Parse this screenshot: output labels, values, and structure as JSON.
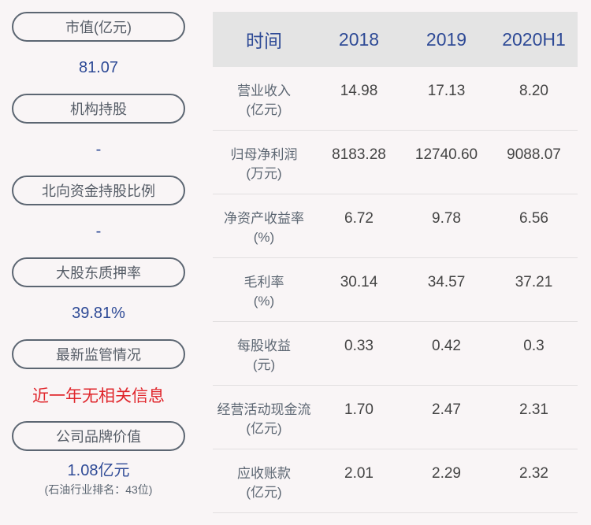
{
  "left_panel": {
    "items": [
      {
        "label": "市值(亿元)",
        "value": "81.07"
      },
      {
        "label": "机构持股",
        "value": "-"
      },
      {
        "label": "北向资金持股比例",
        "value": "-"
      },
      {
        "label": "大股东质押率",
        "value": "39.81%"
      },
      {
        "label": "最新监管情况",
        "value": "近一年无相关信息"
      },
      {
        "label": "公司品牌价值",
        "value": "1.08亿元",
        "sub": "(石油行业排名：43位)"
      }
    ]
  },
  "table": {
    "headers": [
      "时间",
      "2018",
      "2019",
      "2020H1"
    ],
    "rows": [
      {
        "name": "营业收入",
        "unit": "(亿元)",
        "values": [
          "14.98",
          "17.13",
          "8.20"
        ]
      },
      {
        "name": "归母净利润",
        "unit": "(万元)",
        "values": [
          "8183.28",
          "12740.60",
          "9088.07"
        ]
      },
      {
        "name": "净资产收益率",
        "unit": "(%)",
        "values": [
          "6.72",
          "9.78",
          "6.56"
        ]
      },
      {
        "name": "毛利率",
        "unit": "(%)",
        "values": [
          "30.14",
          "34.57",
          "37.21"
        ]
      },
      {
        "name": "每股收益",
        "unit": "(元)",
        "values": [
          "0.33",
          "0.42",
          "0.3"
        ]
      },
      {
        "name": "经营活动现金流",
        "unit": "(亿元)",
        "values": [
          "1.70",
          "2.47",
          "2.31"
        ]
      },
      {
        "name": "应收账款",
        "unit": "(亿元)",
        "values": [
          "2.01",
          "2.29",
          "2.32"
        ]
      }
    ]
  },
  "colors": {
    "accent_blue": "#2e4a96",
    "alert_red": "#e0252b",
    "header_bg": "#e4e4e4",
    "page_bg": "#f9f5f6"
  }
}
